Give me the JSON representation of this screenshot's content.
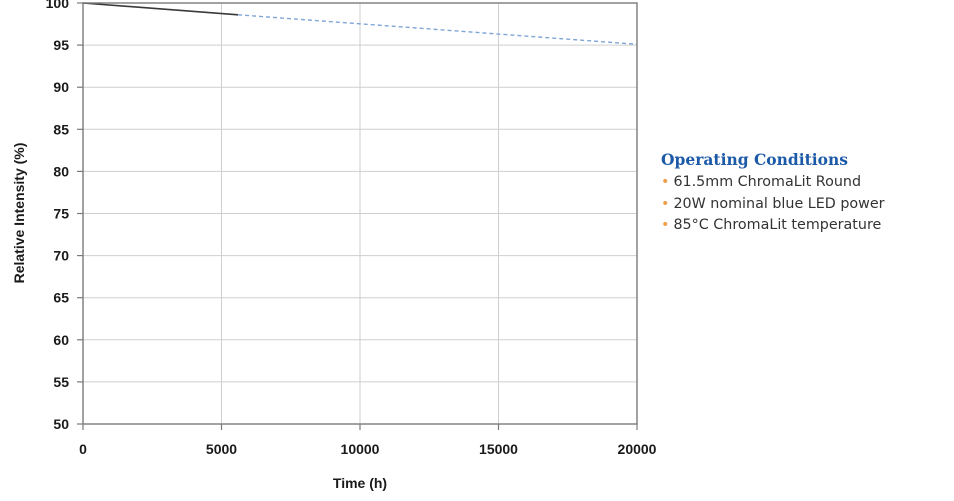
{
  "chart_data": {
    "type": "line",
    "title": "",
    "xlabel": "Time (h)",
    "ylabel": "Relative Intensity (%)",
    "xlim": [
      0,
      20000
    ],
    "ylim": [
      50,
      100
    ],
    "x_ticks": [
      0,
      5000,
      10000,
      15000,
      20000
    ],
    "y_ticks": [
      50,
      55,
      60,
      65,
      70,
      75,
      80,
      85,
      90,
      95,
      100
    ],
    "grid": true,
    "series": [
      {
        "style": "solid",
        "color": "#3a3a3a",
        "x": [
          0,
          5600
        ],
        "y": [
          100,
          98.6
        ]
      },
      {
        "style": "dashed",
        "color": "#7fa6d8",
        "x": [
          5600,
          20000
        ],
        "y": [
          98.6,
          95.1
        ]
      }
    ]
  },
  "conditions": {
    "title": "Operating Conditions",
    "bullet": "•",
    "items": [
      "61.5mm ChromaLit Round",
      "20W nominal blue LED power",
      "85°C ChromaLit temperature"
    ],
    "bullet_color": "#f0a04b",
    "title_color": "#1c5aa8"
  }
}
